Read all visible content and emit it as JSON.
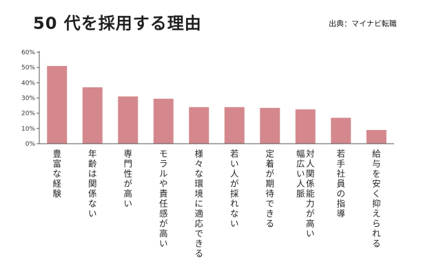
{
  "title": "50 代を採用する理由",
  "source": "出典：マイナビ転職",
  "colors": {
    "bar": "#d4888d",
    "axis": "#555555"
  },
  "chart_data": {
    "type": "bar",
    "title": "50 代を採用する理由",
    "xlabel": "",
    "ylabel": "",
    "ylim": [
      0,
      60
    ],
    "yticks": [
      0,
      10,
      20,
      30,
      40,
      50,
      60
    ],
    "ytick_labels": [
      "0%",
      "10%",
      "20%",
      "30%",
      "40%",
      "50%",
      "60%"
    ],
    "grid": false,
    "legend": "none",
    "categories": [
      [
        "豊富な経験"
      ],
      [
        "年齢は関係ない"
      ],
      [
        "専門性が高い"
      ],
      [
        "モラルや責任感が高い"
      ],
      [
        "様々な環境に適応できる"
      ],
      [
        "若い人が採れない"
      ],
      [
        "定着が期待できる"
      ],
      [
        "幅広い人脈",
        "対人関係能力が高い"
      ],
      [
        "若手社員の指導"
      ],
      [
        "給与を安く抑えられる"
      ]
    ],
    "values": [
      51,
      37,
      31,
      29.5,
      24,
      24,
      23.5,
      22.5,
      17,
      9
    ]
  }
}
